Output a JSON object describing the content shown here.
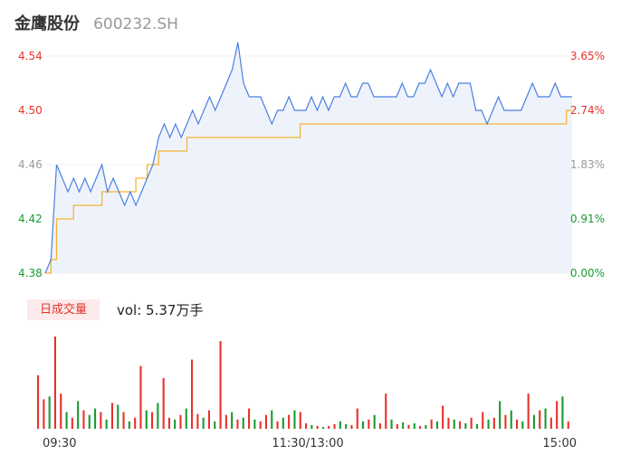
{
  "header": {
    "name": "金鹰股份",
    "code": "600232.SH"
  },
  "volume_panel": {
    "tag": "日成交量",
    "summary": "vol: 5.37万手"
  },
  "colors": {
    "up": "#e8322b",
    "down": "#1a9b33",
    "neutral": "#999999",
    "price_line": "#4a7fe0",
    "avg_line": "#f5b335",
    "fill": "#eef3fb"
  },
  "chart_data": [
    {
      "type": "line",
      "title": "",
      "xlabel": "",
      "ylabel": "",
      "x_ticks": [
        "09:30",
        "11:30/13:00",
        "15:00"
      ],
      "y_ticks_left": [
        "4.54",
        "4.50",
        "4.46",
        "4.42",
        "4.38"
      ],
      "y_ticks_right": [
        "3.65%",
        "2.74%",
        "1.83%",
        "0.91%",
        "0.00%"
      ],
      "ylim": [
        4.38,
        4.54
      ],
      "prev_close": 4.38,
      "series": [
        {
          "name": "price",
          "values": [
            4.38,
            4.39,
            4.46,
            4.45,
            4.44,
            4.45,
            4.44,
            4.45,
            4.44,
            4.45,
            4.46,
            4.44,
            4.45,
            4.44,
            4.43,
            4.44,
            4.43,
            4.44,
            4.45,
            4.46,
            4.48,
            4.49,
            4.48,
            4.49,
            4.48,
            4.49,
            4.5,
            4.49,
            4.5,
            4.51,
            4.5,
            4.51,
            4.52,
            4.53,
            4.55,
            4.52,
            4.51,
            4.51,
            4.51,
            4.5,
            4.49,
            4.5,
            4.5,
            4.51,
            4.5,
            4.5,
            4.5,
            4.51,
            4.5,
            4.51,
            4.5,
            4.51,
            4.51,
            4.52,
            4.51,
            4.51,
            4.52,
            4.52,
            4.51,
            4.51,
            4.51,
            4.51,
            4.51,
            4.52,
            4.51,
            4.51,
            4.52,
            4.52,
            4.53,
            4.52,
            4.51,
            4.52,
            4.51,
            4.52,
            4.52,
            4.52,
            4.5,
            4.5,
            4.49,
            4.5,
            4.51,
            4.5,
            4.5,
            4.5,
            4.5,
            4.51,
            4.52,
            4.51,
            4.51,
            4.51,
            4.52,
            4.51,
            4.51,
            4.51
          ]
        },
        {
          "name": "avg",
          "values": [
            4.38,
            4.39,
            4.42,
            4.42,
            4.42,
            4.43,
            4.43,
            4.43,
            4.43,
            4.43,
            4.44,
            4.44,
            4.44,
            4.44,
            4.44,
            4.44,
            4.45,
            4.45,
            4.46,
            4.46,
            4.47,
            4.47,
            4.47,
            4.47,
            4.47,
            4.48,
            4.48,
            4.48,
            4.48,
            4.48,
            4.48,
            4.48,
            4.48,
            4.48,
            4.48,
            4.48,
            4.48,
            4.48,
            4.48,
            4.48,
            4.48,
            4.48,
            4.48,
            4.48,
            4.48,
            4.49,
            4.49,
            4.49,
            4.49,
            4.49,
            4.49,
            4.49,
            4.49,
            4.49,
            4.49,
            4.49,
            4.49,
            4.49,
            4.49,
            4.49,
            4.49,
            4.49,
            4.49,
            4.49,
            4.49,
            4.49,
            4.49,
            4.49,
            4.49,
            4.49,
            4.49,
            4.49,
            4.49,
            4.49,
            4.49,
            4.49,
            4.49,
            4.49,
            4.49,
            4.49,
            4.49,
            4.49,
            4.49,
            4.49,
            4.49,
            4.49,
            4.49,
            4.49,
            4.49,
            4.49,
            4.49,
            4.49,
            4.5,
            4.5
          ]
        }
      ]
    },
    {
      "type": "bar",
      "title": "",
      "xlabel": "",
      "ylabel": "",
      "values": [
        58,
        32,
        35,
        100,
        38,
        18,
        12,
        30,
        20,
        15,
        22,
        18,
        10,
        28,
        26,
        18,
        8,
        12,
        68,
        20,
        18,
        28,
        55,
        12,
        10,
        15,
        22,
        75,
        16,
        12,
        20,
        8,
        95,
        15,
        18,
        10,
        12,
        22,
        10,
        8,
        15,
        20,
        8,
        12,
        15,
        20,
        18,
        6,
        4,
        3,
        2,
        3,
        5,
        8,
        5,
        4,
        22,
        8,
        10,
        15,
        6,
        38,
        10,
        5,
        7,
        4,
        6,
        3,
        4,
        10,
        8,
        25,
        12,
        10,
        8,
        6,
        12,
        5,
        18,
        10,
        12,
        30,
        15,
        20,
        10,
        8,
        38,
        15,
        20,
        22,
        12,
        30,
        35,
        8
      ],
      "directions": [
        "u",
        "u",
        "d",
        "u",
        "u",
        "d",
        "u",
        "d",
        "u",
        "d",
        "d",
        "u",
        "d",
        "u",
        "d",
        "u",
        "d",
        "u",
        "u",
        "d",
        "u",
        "d",
        "u",
        "u",
        "d",
        "u",
        "d",
        "u",
        "u",
        "d",
        "u",
        "d",
        "u",
        "u",
        "d",
        "u",
        "d",
        "u",
        "d",
        "u",
        "u",
        "d",
        "u",
        "d",
        "u",
        "d",
        "u",
        "u",
        "d",
        "u",
        "d",
        "u",
        "u",
        "d",
        "d",
        "u",
        "u",
        "d",
        "u",
        "d",
        "u",
        "u",
        "d",
        "u",
        "d",
        "u",
        "d",
        "u",
        "d",
        "u",
        "d",
        "u",
        "u",
        "d",
        "u",
        "d",
        "u",
        "d",
        "u",
        "d",
        "u",
        "d",
        "u",
        "d",
        "u",
        "d",
        "u",
        "d",
        "u",
        "d",
        "u",
        "u",
        "d",
        "u"
      ]
    }
  ]
}
